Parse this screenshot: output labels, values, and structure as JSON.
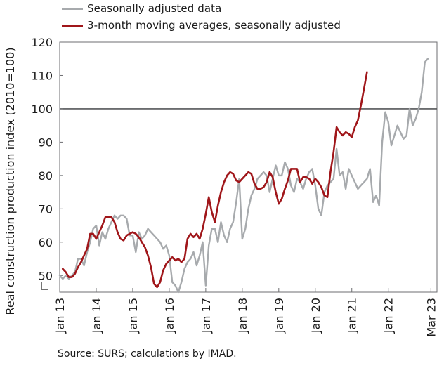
{
  "chart_data": {
    "type": "line",
    "ylabel": "Real construction production index (2010=100)",
    "ylim": [
      45,
      120
    ],
    "yticks": [
      50,
      60,
      70,
      80,
      90,
      100,
      110,
      120
    ],
    "reference_line": 100,
    "xrange": [
      "Jan 13",
      "Mar 23"
    ],
    "xtick_labels": [
      "Jan 13",
      "Jan 14",
      "Jan 15",
      "Jan 16",
      "Jan 17",
      "Jan 18",
      "Jan 19",
      "Jan 20",
      "Jan 21",
      "Jan 22",
      "Mar 23"
    ],
    "xtick_positions": [
      0,
      12,
      24,
      36,
      48,
      60,
      72,
      84,
      96,
      108,
      122
    ],
    "grid": false,
    "legend_position": "top-left",
    "series": [
      {
        "name": "Seasonally adjusted data",
        "color": "#a7aaad",
        "values": [
          50,
          49,
          50,
          49,
          50,
          51,
          55,
          55,
          53,
          57,
          60,
          64,
          65,
          59,
          63,
          61,
          64,
          66,
          68,
          67,
          68,
          68,
          67,
          62,
          62,
          57,
          63,
          61,
          62,
          64,
          63,
          62,
          61,
          60,
          58,
          59,
          56,
          48,
          47,
          45,
          48,
          52,
          54,
          55,
          57,
          53,
          56,
          60,
          47,
          59,
          64,
          64,
          60,
          66,
          62,
          60,
          64,
          66,
          72,
          79,
          61,
          64,
          70,
          74,
          76,
          79,
          80,
          81,
          80,
          75,
          79,
          83,
          80,
          80,
          84,
          82,
          77,
          75,
          79,
          78,
          76,
          79,
          81,
          82,
          77,
          70,
          68,
          75,
          77,
          78,
          79,
          88,
          80,
          81,
          76,
          82,
          80,
          78,
          76,
          77,
          78,
          79,
          82,
          72,
          74,
          71,
          90,
          99,
          96,
          89,
          92,
          95,
          93,
          91,
          92,
          100,
          95,
          97,
          100,
          105,
          114,
          115
        ],
        "x_start": 0
      },
      {
        "name": "3-month moving averages, seasonally adjusted",
        "color": "#a0161a",
        "values": [
          52,
          51,
          49.5,
          49.5,
          50.5,
          52.5,
          54,
          56,
          58,
          62.5,
          62.5,
          61,
          63,
          65,
          67.5,
          67.5,
          67.5,
          66,
          63,
          61,
          60.5,
          62,
          62.5,
          63,
          62.5,
          61.5,
          60,
          58.5,
          56,
          52.5,
          47.5,
          46.5,
          48,
          51.5,
          53.5,
          54.5,
          55.5,
          54.5,
          55,
          54,
          55,
          61,
          62.5,
          61.5,
          62.5,
          61,
          64,
          68.5,
          73.5,
          69,
          66,
          71,
          75,
          78,
          80,
          81,
          80.5,
          78.5,
          78,
          79,
          80,
          81,
          80.5,
          77.5,
          76,
          76,
          76.5,
          78,
          81,
          79.5,
          75,
          71.5,
          73,
          76,
          78.5,
          82,
          82,
          82,
          78,
          79.5,
          79.5,
          79,
          77.5,
          79,
          78,
          76.5,
          74,
          73.5,
          81,
          87,
          94.5,
          93,
          92,
          93,
          92.5,
          91.5,
          94.5,
          96.5,
          101,
          106,
          111
        ],
        "x_start": 1
      }
    ]
  },
  "legend": {
    "items": [
      {
        "label": "Seasonally adjusted data",
        "color": "#a7aaad"
      },
      {
        "label": "3-month moving averages, seasonally adjusted",
        "color": "#a0161a"
      }
    ]
  },
  "source": "Source: SURS; calculations by IMAD."
}
